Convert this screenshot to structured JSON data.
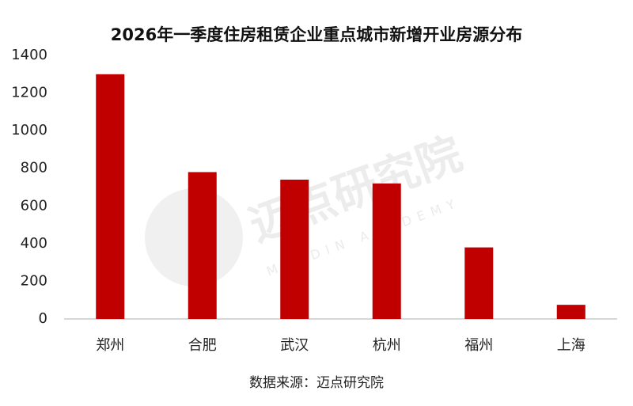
{
  "chart_data": {
    "type": "bar",
    "title": "2026年一季度住房租赁企业重点城市新增开业房源分布",
    "categories": [
      "郑州",
      "合肥",
      "武汉",
      "杭州",
      "福州",
      "上海"
    ],
    "values": [
      1300,
      780,
      740,
      720,
      380,
      75
    ],
    "color": "#c00000",
    "ylim": [
      0,
      1400
    ],
    "yticks": [
      0,
      200,
      400,
      600,
      800,
      1000,
      1200,
      1400
    ],
    "grid": false
  },
  "source": "数据来源：迈点研究院",
  "watermark": "迈点研究院",
  "watermark_sub": "MEADIN ACADEMY"
}
